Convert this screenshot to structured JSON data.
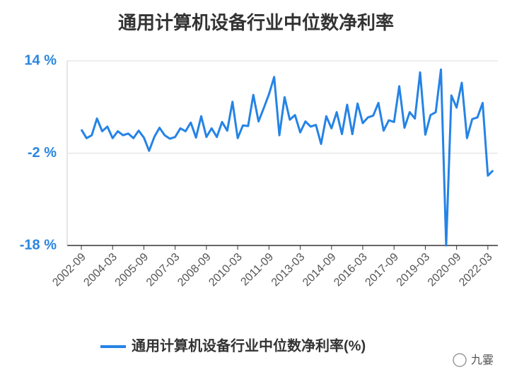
{
  "chart_data": {
    "type": "line",
    "title": "通用计算机设备行业中位数净利率",
    "categories": [
      "2002-09",
      null,
      null,
      null,
      null,
      null,
      "2004-03",
      null,
      null,
      null,
      null,
      null,
      "2005-09",
      null,
      null,
      null,
      null,
      null,
      "2007-03",
      null,
      null,
      null,
      null,
      null,
      "2008-09",
      null,
      null,
      null,
      null,
      null,
      "2010-03",
      null,
      null,
      null,
      null,
      null,
      "2011-09",
      null,
      null,
      null,
      null,
      null,
      "2013-03",
      null,
      null,
      null,
      null,
      null,
      "2014-09",
      null,
      null,
      null,
      null,
      null,
      "2016-03",
      null,
      null,
      null,
      null,
      null,
      "2017-09",
      null,
      null,
      null,
      null,
      null,
      "2019-03",
      null,
      null,
      null,
      null,
      null,
      "2020-09",
      null,
      null,
      null,
      null,
      null,
      "2022-03",
      null
    ],
    "series": [
      {
        "name": "通用计算机设备行业中位数净利率(%)",
        "color": "#2583e6",
        "values": [
          2.1,
          0.6,
          1.1,
          4.0,
          1.8,
          2.6,
          0.6,
          1.8,
          1.1,
          1.4,
          0.6,
          1.9,
          0.7,
          -1.6,
          0.8,
          2.4,
          1.1,
          0.5,
          0.8,
          2.3,
          1.8,
          3.3,
          0.7,
          4.4,
          0.8,
          2.3,
          0.8,
          3.4,
          1.9,
          6.9,
          0.6,
          2.8,
          2.7,
          8.1,
          3.5,
          5.8,
          8.2,
          11.2,
          1.1,
          7.7,
          3.8,
          4.6,
          1.6,
          3.5,
          2.6,
          2.9,
          -0.4,
          4.4,
          2.3,
          5.1,
          1.3,
          6.4,
          1.3,
          6.6,
          3.2,
          4.2,
          4.5,
          6.7,
          1.9,
          3.7,
          3.4,
          9.6,
          2.4,
          5.1,
          4.0,
          12.0,
          1.2,
          4.6,
          5.1,
          12.5,
          -18,
          8.0,
          5.9,
          10.2,
          0.6,
          3.9,
          4.2,
          6.7,
          -5.9,
          -5.0
        ]
      }
    ],
    "ylim": [
      -18,
      14
    ],
    "yticks": [
      {
        "value": -18,
        "label": "-18 %"
      },
      {
        "value": -2,
        "label": "-2 %"
      },
      {
        "value": 14,
        "label": "14 %"
      }
    ],
    "grid": true,
    "legend": "bottom",
    "watermark": "九霎"
  }
}
